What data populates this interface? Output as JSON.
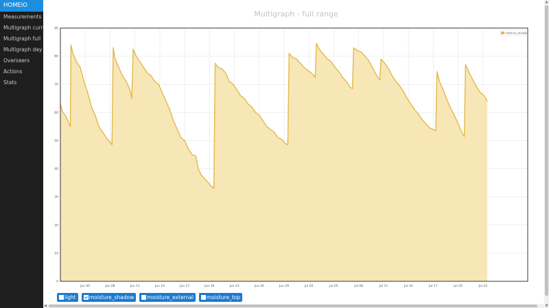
{
  "sidebar": {
    "brand": "HOMEIO",
    "items": [
      {
        "label": "Measurements"
      },
      {
        "label": "Multigraph current"
      },
      {
        "label": "Multigraph full"
      },
      {
        "label": "Multigraph day"
      },
      {
        "label": "Overseers"
      },
      {
        "label": "Actions"
      },
      {
        "label": "Stats"
      }
    ]
  },
  "page": {
    "title": "Multigraph - full range"
  },
  "toggles": [
    {
      "label": "light",
      "checked": false
    },
    {
      "label": "moisture_shadow",
      "checked": true
    },
    {
      "label": "moisture_external",
      "checked": false
    },
    {
      "label": "moisture_top",
      "checked": false
    }
  ],
  "colors": {
    "series_line": "#e3b84a",
    "series_fill": "#f7e7b7",
    "accent": "#1a7ad0",
    "sidebar_bg": "#1e1e1e"
  },
  "chart_data": {
    "type": "area",
    "title": "",
    "xlabel": "",
    "ylabel": "",
    "ylim": [
      0,
      90
    ],
    "y_ticks": [
      0,
      10,
      20,
      30,
      40,
      50,
      60,
      70,
      80,
      90
    ],
    "xlim": [
      0,
      37.6
    ],
    "x_ticks": [
      {
        "x": 2,
        "label": "Jun 05"
      },
      {
        "x": 4,
        "label": "Jun 08"
      },
      {
        "x": 6,
        "label": "Jun 11"
      },
      {
        "x": 8,
        "label": "Jun 14"
      },
      {
        "x": 10,
        "label": "Jun 17"
      },
      {
        "x": 12,
        "label": "Jun 20"
      },
      {
        "x": 14,
        "label": "Jun 23"
      },
      {
        "x": 16,
        "label": "Jun 26"
      },
      {
        "x": 18,
        "label": "Jun 29"
      },
      {
        "x": 20,
        "label": "Jul 02"
      },
      {
        "x": 22,
        "label": "Jul 05"
      },
      {
        "x": 24,
        "label": "Jul 08"
      },
      {
        "x": 26,
        "label": "Jul 11"
      },
      {
        "x": 28,
        "label": "Jul 14"
      },
      {
        "x": 30,
        "label": "Jul 17"
      },
      {
        "x": 32,
        "label": "Jul 20"
      },
      {
        "x": 34,
        "label": "Jul 23"
      }
    ],
    "grid": true,
    "legend": "top-right",
    "series": [
      {
        "name": "moisture_shadow",
        "points": [
          [
            0.0,
            63
          ],
          [
            0.2,
            60
          ],
          [
            0.4,
            59
          ],
          [
            0.6,
            57
          ],
          [
            0.8,
            55
          ],
          [
            0.85,
            84
          ],
          [
            1.0,
            81
          ],
          [
            1.3,
            78
          ],
          [
            1.6,
            76
          ],
          [
            1.9,
            71
          ],
          [
            2.2,
            67
          ],
          [
            2.5,
            62
          ],
          [
            2.8,
            59
          ],
          [
            3.1,
            55
          ],
          [
            3.4,
            53
          ],
          [
            3.7,
            51
          ],
          [
            4.0,
            49.5
          ],
          [
            4.15,
            48.5
          ],
          [
            4.25,
            83
          ],
          [
            4.4,
            79
          ],
          [
            4.7,
            76
          ],
          [
            5.0,
            73
          ],
          [
            5.3,
            71
          ],
          [
            5.6,
            68
          ],
          [
            5.75,
            65
          ],
          [
            5.85,
            82.5
          ],
          [
            6.1,
            80
          ],
          [
            6.4,
            78
          ],
          [
            6.7,
            76
          ],
          [
            7.0,
            74
          ],
          [
            7.3,
            73
          ],
          [
            7.6,
            71
          ],
          [
            7.9,
            70
          ],
          [
            8.2,
            67
          ],
          [
            8.5,
            64
          ],
          [
            8.8,
            61
          ],
          [
            9.1,
            57
          ],
          [
            9.4,
            54
          ],
          [
            9.7,
            51
          ],
          [
            10.0,
            50
          ],
          [
            10.3,
            47
          ],
          [
            10.6,
            45
          ],
          [
            10.9,
            44.5
          ],
          [
            11.1,
            40
          ],
          [
            11.3,
            38
          ],
          [
            11.5,
            37
          ],
          [
            11.7,
            36
          ],
          [
            11.9,
            35
          ],
          [
            12.1,
            34
          ],
          [
            12.35,
            33
          ],
          [
            12.45,
            77.5
          ],
          [
            12.7,
            76
          ],
          [
            13.0,
            75.5
          ],
          [
            13.3,
            74
          ],
          [
            13.6,
            71
          ],
          [
            13.9,
            70
          ],
          [
            14.2,
            68
          ],
          [
            14.5,
            66
          ],
          [
            14.8,
            65
          ],
          [
            15.1,
            63
          ],
          [
            15.4,
            62
          ],
          [
            15.7,
            60
          ],
          [
            16.0,
            59
          ],
          [
            16.3,
            57
          ],
          [
            16.6,
            55
          ],
          [
            16.9,
            54
          ],
          [
            17.2,
            53
          ],
          [
            17.5,
            51
          ],
          [
            17.8,
            50.5
          ],
          [
            18.1,
            49
          ],
          [
            18.3,
            48.5
          ],
          [
            18.4,
            81
          ],
          [
            18.7,
            79.5
          ],
          [
            19.0,
            79
          ],
          [
            19.3,
            77.5
          ],
          [
            19.6,
            76
          ],
          [
            19.9,
            75
          ],
          [
            20.2,
            74
          ],
          [
            20.5,
            72.5
          ],
          [
            20.6,
            84.5
          ],
          [
            20.9,
            82
          ],
          [
            21.2,
            80.5
          ],
          [
            21.5,
            79
          ],
          [
            21.8,
            78
          ],
          [
            22.1,
            76
          ],
          [
            22.4,
            74.5
          ],
          [
            22.7,
            72.5
          ],
          [
            23.0,
            71
          ],
          [
            23.3,
            69
          ],
          [
            23.5,
            68.5
          ],
          [
            23.6,
            83
          ],
          [
            23.9,
            82
          ],
          [
            24.2,
            81.5
          ],
          [
            24.5,
            80
          ],
          [
            24.8,
            78.5
          ],
          [
            25.1,
            76
          ],
          [
            25.4,
            73.5
          ],
          [
            25.7,
            71.5
          ],
          [
            25.8,
            79
          ],
          [
            26.1,
            77.5
          ],
          [
            26.4,
            75.5
          ],
          [
            26.7,
            73
          ],
          [
            27.0,
            71
          ],
          [
            27.3,
            69.5
          ],
          [
            27.6,
            67.5
          ],
          [
            27.9,
            65
          ],
          [
            28.2,
            63
          ],
          [
            28.5,
            61
          ],
          [
            28.8,
            59.5
          ],
          [
            29.1,
            57.5
          ],
          [
            29.4,
            56
          ],
          [
            29.7,
            54.5
          ],
          [
            30.0,
            54
          ],
          [
            30.2,
            53.5
          ],
          [
            30.3,
            74.5
          ],
          [
            30.5,
            71
          ],
          [
            30.8,
            68
          ],
          [
            31.1,
            64.5
          ],
          [
            31.4,
            61.5
          ],
          [
            31.7,
            59
          ],
          [
            32.0,
            56
          ],
          [
            32.3,
            53
          ],
          [
            32.5,
            51.5
          ],
          [
            32.6,
            77
          ],
          [
            32.9,
            74
          ],
          [
            33.2,
            71.5
          ],
          [
            33.5,
            69
          ],
          [
            33.8,
            67
          ],
          [
            34.1,
            66
          ],
          [
            34.3,
            64.5
          ],
          [
            34.35,
            64
          ]
        ]
      }
    ]
  }
}
